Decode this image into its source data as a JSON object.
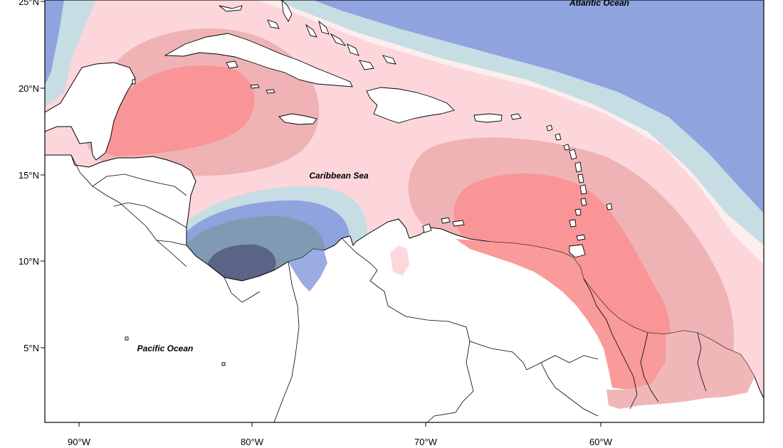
{
  "map": {
    "labels": {
      "atlantic": "Atlantic Ocean",
      "caribbean": "Caribbean Sea",
      "pacific": "Pacific Ocean"
    },
    "x_ticks": [
      "90°W",
      "80°W",
      "70°W",
      "60°W"
    ],
    "y_ticks": [
      "25°N",
      "20°N",
      "15°N",
      "10°N",
      "5°N"
    ],
    "legend": null,
    "colors": {
      "deep_navy": "#5a6486",
      "slate_blue": "#7f9ab2",
      "blue": "#8fa3df",
      "light_blue": "#c6dde3",
      "near_white_pink": "#fdeeee",
      "light_pink": "#fcd6da",
      "dusty_rose": "#efb3b5",
      "salmon": "#f99596",
      "land": "#ffffff",
      "coastline": "#000000"
    }
  }
}
